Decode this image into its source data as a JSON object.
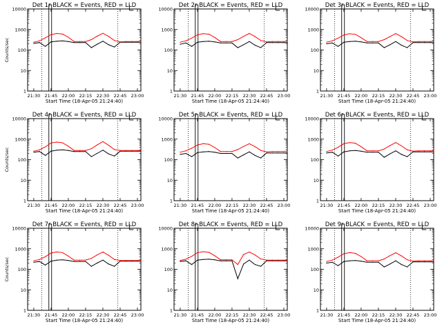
{
  "figure": {
    "background": "#ffffff",
    "colors": {
      "events": "#000000",
      "lld": "#ff0000",
      "axes": "#000000"
    }
  },
  "chart_data": [
    {
      "type": "line",
      "title": "Det 1r BLACK = Events, RED = LLD",
      "xlabel": "Start Time (18-Apr-05 21:24:40)",
      "ylabel": "Counts/sec",
      "yscale": "log",
      "ylim": [
        1,
        10000
      ],
      "xticks": [
        "21:30",
        "21:45",
        "22:00",
        "22:15",
        "22:30",
        "22:45",
        "23:00"
      ],
      "yticks": [
        "1",
        "10",
        "100",
        "1000",
        "10000"
      ],
      "x": [
        "21:24",
        "21:30",
        "21:35",
        "21:40",
        "21:45",
        "21:50",
        "21:55",
        "22:00",
        "22:05",
        "22:10",
        "22:15",
        "22:20",
        "22:25",
        "22:30",
        "22:35",
        "22:40",
        "22:45",
        "22:50",
        "22:55",
        "23:00",
        "23:03"
      ],
      "series": [
        {
          "color": "#000000",
          "values": [
            null,
            210,
            230,
            150,
            250,
            270,
            280,
            260,
            230,
            230,
            230,
            130,
            190,
            270,
            180,
            140,
            240,
            240,
            240,
            240,
            240
          ]
        },
        {
          "color": "#ff0000",
          "values": [
            null,
            240,
            280,
            390,
            560,
            640,
            600,
            420,
            260,
            260,
            260,
            320,
            470,
            650,
            460,
            290,
            250,
            260,
            260,
            260,
            260
          ]
        }
      ]
    },
    {
      "type": "line",
      "title": "Det 2r BLACK = Events, RED = LLD",
      "xlabel": "Start Time (18-Apr-05 21:24:40)",
      "ylabel": "",
      "yscale": "log",
      "ylim": [
        1,
        10000
      ],
      "xticks": [
        "21:30",
        "21:45",
        "22:00",
        "22:15",
        "22:30",
        "22:45",
        "23:00"
      ],
      "yticks": [
        "1",
        "10",
        "100",
        "1000",
        "10000"
      ],
      "x": [
        "21:24",
        "21:30",
        "21:35",
        "21:40",
        "21:45",
        "21:50",
        "21:55",
        "22:00",
        "22:05",
        "22:10",
        "22:15",
        "22:20",
        "22:25",
        "22:30",
        "22:35",
        "22:40",
        "22:45",
        "22:50",
        "22:55",
        "23:00",
        "23:03"
      ],
      "series": [
        {
          "color": "#000000",
          "values": [
            null,
            190,
            220,
            150,
            240,
            260,
            270,
            250,
            220,
            220,
            220,
            130,
            180,
            260,
            170,
            130,
            230,
            230,
            230,
            230,
            230
          ]
        },
        {
          "color": "#ff0000",
          "values": [
            null,
            240,
            280,
            380,
            550,
            630,
            590,
            410,
            260,
            260,
            260,
            320,
            460,
            640,
            450,
            290,
            250,
            260,
            260,
            260,
            260
          ]
        }
      ]
    },
    {
      "type": "line",
      "title": "Det 3r BLACK = Events, RED = LLD",
      "xlabel": "Start Time (18-Apr-05 21:24:40)",
      "ylabel": "",
      "yscale": "log",
      "ylim": [
        1,
        10000
      ],
      "xticks": [
        "21:30",
        "21:45",
        "22:00",
        "22:15",
        "22:30",
        "22:45",
        "23:00"
      ],
      "yticks": [
        "1",
        "10",
        "100",
        "1000",
        "10000"
      ],
      "x": [
        "21:24",
        "21:30",
        "21:35",
        "21:40",
        "21:45",
        "21:50",
        "21:55",
        "22:00",
        "22:05",
        "22:10",
        "22:15",
        "22:20",
        "22:25",
        "22:30",
        "22:35",
        "22:40",
        "22:45",
        "22:50",
        "22:55",
        "23:00",
        "23:03"
      ],
      "series": [
        {
          "color": "#000000",
          "values": [
            null,
            200,
            220,
            150,
            240,
            260,
            270,
            250,
            220,
            220,
            220,
            130,
            180,
            260,
            170,
            130,
            230,
            230,
            230,
            230,
            230
          ]
        },
        {
          "color": "#ff0000",
          "values": [
            null,
            240,
            280,
            380,
            540,
            620,
            580,
            400,
            260,
            260,
            260,
            320,
            450,
            630,
            450,
            290,
            250,
            260,
            260,
            260,
            260
          ]
        }
      ]
    },
    {
      "type": "line",
      "title": "Det 4r BLACK = Events, RED = LLD",
      "xlabel": "Start Time (18-Apr-05 21:24:40)",
      "ylabel": "Counts/sec",
      "yscale": "log",
      "ylim": [
        1,
        10000
      ],
      "xticks": [
        "21:30",
        "21:45",
        "22:00",
        "22:15",
        "22:30",
        "22:45",
        "23:00"
      ],
      "yticks": [
        "1",
        "10",
        "100",
        "1000",
        "10000"
      ],
      "x": [
        "21:24",
        "21:30",
        "21:35",
        "21:40",
        "21:45",
        "21:50",
        "21:55",
        "22:00",
        "22:05",
        "22:10",
        "22:15",
        "22:20",
        "22:25",
        "22:30",
        "22:35",
        "22:40",
        "22:45",
        "22:50",
        "22:55",
        "23:00",
        "23:03"
      ],
      "series": [
        {
          "color": "#000000",
          "values": [
            null,
            230,
            250,
            160,
            260,
            290,
            300,
            280,
            250,
            250,
            250,
            140,
            200,
            290,
            190,
            150,
            260,
            260,
            260,
            260,
            260
          ]
        },
        {
          "color": "#ff0000",
          "values": [
            null,
            260,
            300,
            420,
            650,
            720,
            660,
            450,
            280,
            280,
            280,
            340,
            520,
            760,
            500,
            310,
            280,
            280,
            280,
            280,
            280
          ]
        }
      ]
    },
    {
      "type": "line",
      "title": "Det 5r BLACK = Events, RED = LLD",
      "xlabel": "Start Time (18-Apr-05 21:24:40)",
      "ylabel": "",
      "yscale": "log",
      "ylim": [
        1,
        10000
      ],
      "xticks": [
        "21:30",
        "21:45",
        "22:00",
        "22:15",
        "22:30",
        "22:45",
        "23:00"
      ],
      "yticks": [
        "1",
        "10",
        "100",
        "1000",
        "10000"
      ],
      "x": [
        "21:24",
        "21:30",
        "21:35",
        "21:40",
        "21:45",
        "21:50",
        "21:55",
        "22:00",
        "22:05",
        "22:10",
        "22:15",
        "22:20",
        "22:25",
        "22:30",
        "22:35",
        "22:40",
        "22:45",
        "22:50",
        "22:55",
        "23:00",
        "23:03"
      ],
      "series": [
        {
          "color": "#000000",
          "values": [
            null,
            180,
            200,
            140,
            220,
            240,
            250,
            230,
            200,
            200,
            200,
            120,
            170,
            240,
            160,
            120,
            210,
            210,
            210,
            210,
            210
          ]
        },
        {
          "color": "#ff0000",
          "values": [
            null,
            230,
            270,
            360,
            520,
            600,
            560,
            390,
            250,
            250,
            250,
            310,
            440,
            600,
            430,
            280,
            240,
            250,
            250,
            250,
            250
          ]
        }
      ]
    },
    {
      "type": "line",
      "title": "Det 6r BLACK = Events, RED = LLD",
      "xlabel": "Start Time (18-Apr-05 21:24:40)",
      "ylabel": "",
      "yscale": "log",
      "ylim": [
        1,
        10000
      ],
      "xticks": [
        "21:30",
        "21:45",
        "22:00",
        "22:15",
        "22:30",
        "22:45",
        "23:00"
      ],
      "yticks": [
        "1",
        "10",
        "100",
        "1000",
        "10000"
      ],
      "x": [
        "21:24",
        "21:30",
        "21:35",
        "21:40",
        "21:45",
        "21:50",
        "21:55",
        "22:00",
        "22:05",
        "22:10",
        "22:15",
        "22:20",
        "22:25",
        "22:30",
        "22:35",
        "22:40",
        "22:45",
        "22:50",
        "22:55",
        "23:00",
        "23:03"
      ],
      "series": [
        {
          "color": "#000000",
          "values": [
            null,
            210,
            230,
            150,
            240,
            270,
            280,
            260,
            230,
            230,
            230,
            130,
            190,
            270,
            180,
            140,
            240,
            240,
            240,
            240,
            240
          ]
        },
        {
          "color": "#ff0000",
          "values": [
            null,
            250,
            290,
            400,
            600,
            680,
            630,
            430,
            270,
            270,
            270,
            330,
            480,
            680,
            470,
            300,
            260,
            270,
            270,
            270,
            270
          ]
        }
      ]
    },
    {
      "type": "line",
      "title": "Det 7r BLACK = Events, RED = LLD",
      "xlabel": "Start Time (18-Apr-05 21:24:40)",
      "ylabel": "Counts/sec",
      "yscale": "log",
      "ylim": [
        1,
        10000
      ],
      "xticks": [
        "21:30",
        "21:45",
        "22:00",
        "22:15",
        "22:30",
        "22:45",
        "23:00"
      ],
      "yticks": [
        "1",
        "10",
        "100",
        "1000",
        "10000"
      ],
      "x": [
        "21:24",
        "21:30",
        "21:35",
        "21:40",
        "21:45",
        "21:50",
        "21:55",
        "22:00",
        "22:05",
        "22:10",
        "22:15",
        "22:20",
        "22:25",
        "22:30",
        "22:35",
        "22:40",
        "22:45",
        "22:50",
        "22:55",
        "23:00",
        "23:03"
      ],
      "series": [
        {
          "color": "#000000",
          "values": [
            null,
            220,
            240,
            160,
            250,
            280,
            290,
            270,
            240,
            240,
            240,
            140,
            200,
            280,
            180,
            140,
            250,
            250,
            250,
            250,
            250
          ]
        },
        {
          "color": "#ff0000",
          "values": [
            null,
            260,
            300,
            410,
            620,
            700,
            650,
            440,
            280,
            280,
            280,
            340,
            500,
            700,
            480,
            300,
            270,
            270,
            270,
            270,
            270
          ]
        }
      ]
    },
    {
      "type": "line",
      "title": "Det 8r BLACK = Events, RED = LLD",
      "xlabel": "Start Time (18-Apr-05 21:24:40)",
      "ylabel": "",
      "yscale": "log",
      "ylim": [
        1,
        10000
      ],
      "xticks": [
        "21:30",
        "21:45",
        "22:00",
        "22:15",
        "22:30",
        "22:45",
        "23:00"
      ],
      "yticks": [
        "1",
        "10",
        "100",
        "1000",
        "10000"
      ],
      "x": [
        "21:24",
        "21:30",
        "21:35",
        "21:40",
        "21:45",
        "21:50",
        "21:55",
        "22:00",
        "22:05",
        "22:10",
        "22:15",
        "22:20",
        "22:25",
        "22:30",
        "22:35",
        "22:40",
        "22:45",
        "22:50",
        "22:55",
        "23:00",
        "23:03"
      ],
      "series": [
        {
          "color": "#000000",
          "values": [
            null,
            240,
            260,
            170,
            280,
            300,
            310,
            290,
            260,
            260,
            260,
            35,
            180,
            280,
            170,
            140,
            260,
            260,
            260,
            260,
            260
          ]
        },
        {
          "color": "#ff0000",
          "values": [
            null,
            270,
            310,
            430,
            650,
            720,
            670,
            460,
            290,
            290,
            290,
            170,
            520,
            700,
            500,
            320,
            280,
            280,
            280,
            280,
            280
          ]
        }
      ]
    },
    {
      "type": "line",
      "title": "Det 9r BLACK = Events, RED = LLD",
      "xlabel": "Start Time (18-Apr-05 21:24:40)",
      "ylabel": "",
      "yscale": "log",
      "ylim": [
        1,
        10000
      ],
      "xticks": [
        "21:30",
        "21:45",
        "22:00",
        "22:15",
        "22:30",
        "22:45",
        "23:00"
      ],
      "yticks": [
        "1",
        "10",
        "100",
        "1000",
        "10000"
      ],
      "x": [
        "21:24",
        "21:30",
        "21:35",
        "21:40",
        "21:45",
        "21:50",
        "21:55",
        "22:00",
        "22:05",
        "22:10",
        "22:15",
        "22:20",
        "22:25",
        "22:30",
        "22:35",
        "22:40",
        "22:45",
        "22:50",
        "22:55",
        "23:00",
        "23:03"
      ],
      "series": [
        {
          "color": "#000000",
          "values": [
            null,
            200,
            220,
            150,
            240,
            260,
            270,
            250,
            220,
            220,
            220,
            130,
            180,
            260,
            170,
            130,
            230,
            230,
            230,
            230,
            230
          ]
        },
        {
          "color": "#ff0000",
          "values": [
            null,
            240,
            280,
            390,
            570,
            650,
            600,
            420,
            260,
            260,
            260,
            320,
            460,
            640,
            450,
            290,
            250,
            260,
            260,
            260,
            260
          ]
        }
      ]
    }
  ]
}
